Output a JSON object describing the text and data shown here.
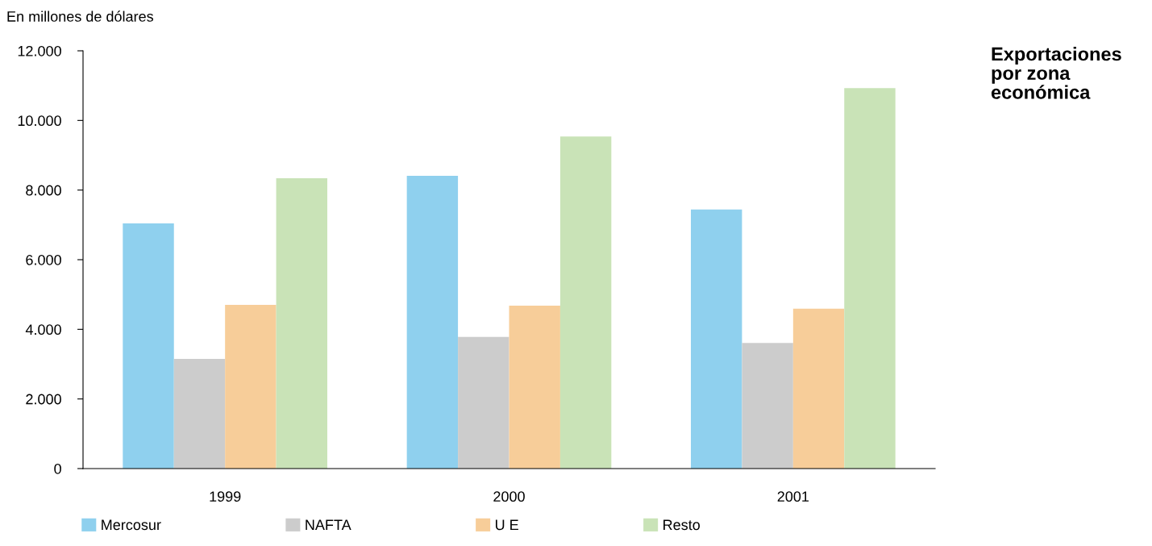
{
  "chart_data": {
    "type": "bar",
    "title": "Exportaciones\npor zona\neconómica",
    "ylabel": "En millones de dólares",
    "categories": [
      "1999",
      "2000",
      "2001"
    ],
    "series": [
      {
        "name": "Mercosur",
        "color": "#8fd0ee",
        "values": [
          7040,
          8410,
          7440
        ]
      },
      {
        "name": "NAFTA",
        "color": "#cccccc",
        "values": [
          3150,
          3780,
          3610
        ]
      },
      {
        "name": "U E",
        "color": "#f7cd99",
        "values": [
          4700,
          4680,
          4590
        ]
      },
      {
        "name": "Resto",
        "color": "#c9e3b7",
        "values": [
          8340,
          9540,
          10930
        ]
      }
    ],
    "ylim": [
      0,
      12000
    ],
    "yticks": [
      0,
      {
        "value": 2000,
        "label": "2.000"
      },
      {
        "value": 4000,
        "label": "4.000"
      },
      {
        "value": 6000,
        "label": "6.000"
      },
      {
        "value": 8000,
        "label": "8.000"
      },
      {
        "value": 10000,
        "label": "10.000"
      },
      {
        "value": 12000,
        "label": "12.000"
      }
    ],
    "grid": false,
    "legend": "bottom"
  }
}
